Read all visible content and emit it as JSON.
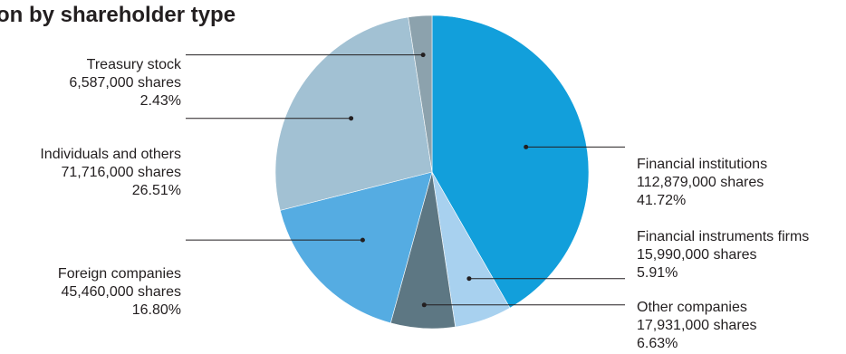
{
  "chart_data": {
    "type": "pie",
    "title": "on by shareholder type",
    "start_angle_deg": 0,
    "direction": "clockwise",
    "slices": [
      {
        "name": "Financial institutions",
        "shares": "112,879,000 shares",
        "percent_label": "41.72%",
        "value": 41.72,
        "color": "#129fdb"
      },
      {
        "name": "Financial instruments firms",
        "shares": "15,990,000 shares",
        "percent_label": "5.91%",
        "value": 5.91,
        "color": "#a8d1ef"
      },
      {
        "name": "Other companies",
        "shares": "17,931,000 shares",
        "percent_label": "6.63%",
        "value": 6.63,
        "color": "#5d7783"
      },
      {
        "name": "Foreign companies",
        "shares": "45,460,000 shares",
        "percent_label": "16.80%",
        "value": 16.8,
        "color": "#55ace2"
      },
      {
        "name": "Individuals and others",
        "shares": "71,716,000 shares",
        "percent_label": "26.51%",
        "value": 26.51,
        "color": "#a2c1d3"
      },
      {
        "name": "Treasury stock",
        "shares": "6,587,000 shares",
        "percent_label": "2.43%",
        "value": 2.43,
        "color": "#8ca2ad"
      }
    ]
  }
}
